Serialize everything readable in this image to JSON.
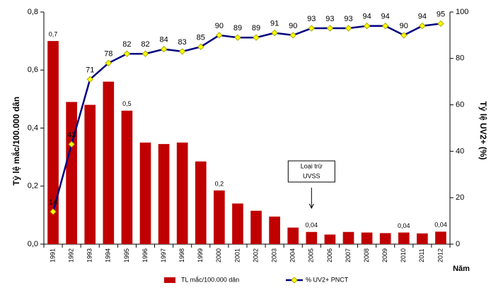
{
  "chart_data": {
    "type": "bar_line",
    "categories": [
      "1991",
      "1992",
      "1993",
      "1994",
      "1995",
      "1996",
      "1997",
      "1998",
      "1999",
      "2000",
      "2001",
      "2002",
      "2003",
      "2004",
      "2005",
      "2006",
      "2007",
      "2008",
      "2009",
      "2010",
      "2011",
      "2012"
    ],
    "series": [
      {
        "name": "TL mắc/100.000 dân",
        "color": "#c00000",
        "type": "bar",
        "values": [
          0.7,
          0.49,
          0.48,
          0.56,
          0.46,
          0.35,
          0.345,
          0.35,
          0.285,
          0.185,
          0.14,
          0.115,
          0.095,
          0.057,
          0.042,
          0.033,
          0.042,
          0.04,
          0.038,
          0.04,
          0.037,
          0.043
        ],
        "value_labels": [
          "0,7",
          null,
          null,
          null,
          "0,5",
          null,
          null,
          null,
          null,
          "0,2",
          null,
          null,
          null,
          null,
          "0,04",
          null,
          null,
          null,
          null,
          "0,04",
          null,
          "0,04"
        ]
      },
      {
        "name": "% UV2+ PNCT",
        "color": "#000080",
        "marker_color": "#ffff00",
        "type": "line",
        "axis": "y2",
        "values": [
          14,
          43,
          71,
          78,
          82,
          82,
          84,
          83,
          85,
          90,
          89,
          89,
          91,
          90,
          93,
          93,
          93,
          94,
          94,
          90,
          94,
          95
        ]
      }
    ],
    "ylabel": "Tỷ lệ mắc/100.000 dân",
    "y2label": "Tỷ lệ UV2+ (%)",
    "xlabel": "Năm",
    "annotation": {
      "lines": [
        "Loại trừ",
        "UVSS"
      ],
      "category": "2005"
    },
    "ylim": [
      0,
      0.8
    ],
    "yticks": [
      {
        "value": 0,
        "label": "0,0"
      },
      {
        "value": 0.2,
        "label": "0,2"
      },
      {
        "value": 0.4,
        "label": "0,4"
      },
      {
        "value": 0.6,
        "label": "0,6"
      },
      {
        "value": 0.8,
        "label": "0,8"
      }
    ],
    "y2lim": [
      0,
      100
    ],
    "y2ticks": [
      0,
      20,
      40,
      60,
      80,
      100
    ]
  }
}
